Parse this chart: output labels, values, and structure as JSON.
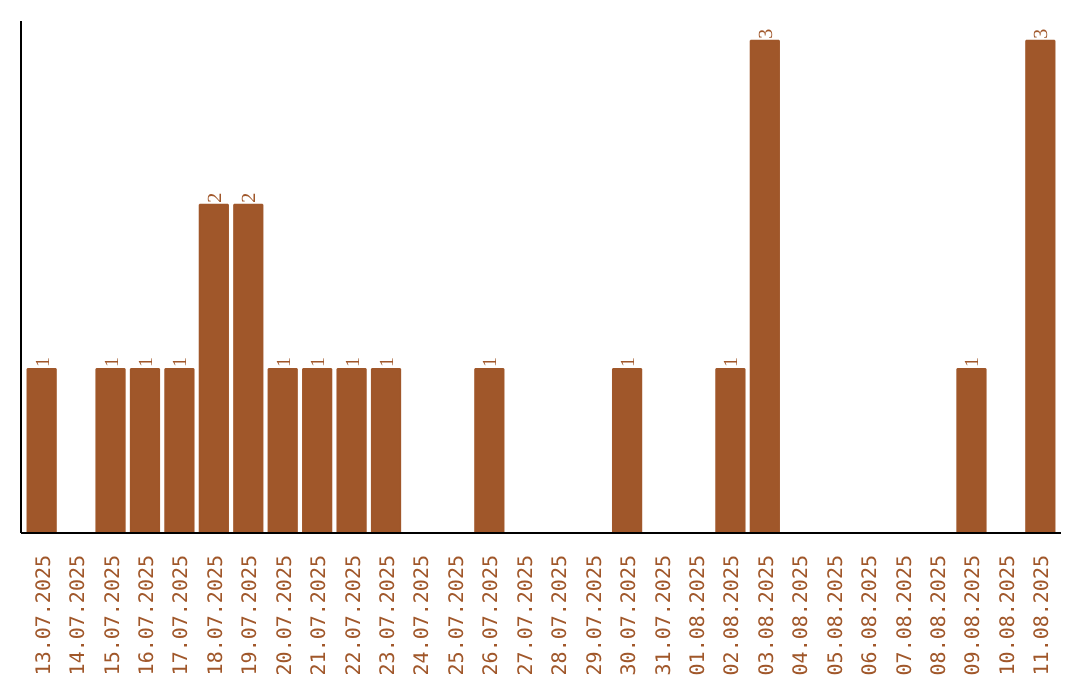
{
  "chart_data": {
    "type": "bar",
    "categories": [
      "13.07.2025",
      "14.07.2025",
      "15.07.2025",
      "16.07.2025",
      "17.07.2025",
      "18.07.2025",
      "19.07.2025",
      "20.07.2025",
      "21.07.2025",
      "22.07.2025",
      "23.07.2025",
      "24.07.2025",
      "25.07.2025",
      "26.07.2025",
      "27.07.2025",
      "28.07.2025",
      "29.07.2025",
      "30.07.2025",
      "31.07.2025",
      "01.08.2025",
      "02.08.2025",
      "03.08.2025",
      "04.08.2025",
      "05.08.2025",
      "06.08.2025",
      "07.08.2025",
      "08.08.2025",
      "09.08.2025",
      "10.08.2025",
      "11.08.2025"
    ],
    "values": [
      1,
      0,
      1,
      1,
      1,
      2,
      2,
      1,
      1,
      1,
      1,
      0,
      0,
      1,
      0,
      0,
      0,
      1,
      0,
      0,
      1,
      3,
      0,
      0,
      0,
      0,
      0,
      1,
      0,
      3
    ],
    "value_labels": [
      "1",
      null,
      "1",
      "1",
      "1",
      "2",
      "2",
      "1",
      "1",
      "1",
      "1",
      null,
      null,
      "1",
      null,
      null,
      null,
      "1",
      null,
      null,
      "1",
      "3",
      null,
      null,
      null,
      null,
      null,
      "1",
      null,
      "3"
    ],
    "color": "#a0572a",
    "tick_labels": "x",
    "grid": false
  }
}
